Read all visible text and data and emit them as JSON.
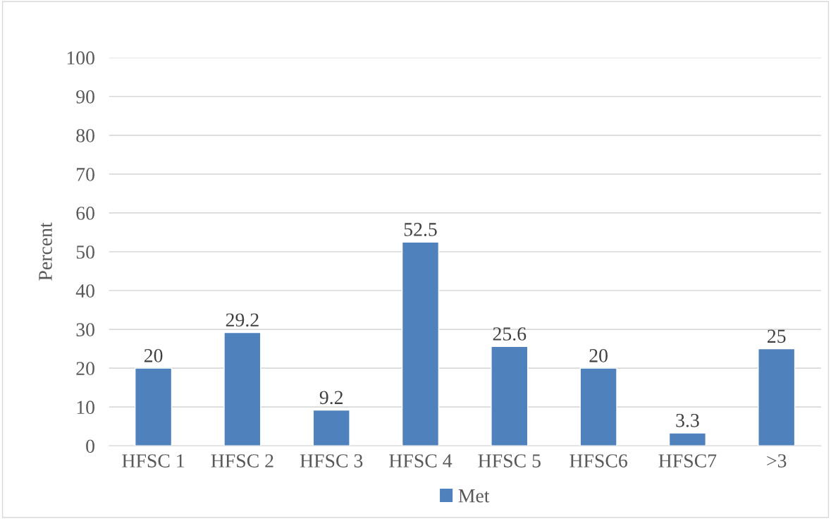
{
  "chart_data": {
    "type": "bar",
    "ylabel": "Percent",
    "categories": [
      "HFSC 1",
      "HFSC 2",
      "HFSC 3",
      "HFSC 4",
      "HFSC 5",
      "HFSC6",
      "HFSC7",
      ">3"
    ],
    "series": [
      {
        "name": "Met",
        "color": "#4f81bd",
        "values": [
          20,
          29.2,
          9.2,
          52.5,
          25.6,
          20,
          3.3,
          25
        ]
      }
    ],
    "ylim": [
      0,
      100
    ],
    "yticks": [
      0,
      10,
      20,
      30,
      40,
      50,
      60,
      70,
      80,
      90,
      100
    ],
    "grid": "y",
    "legend": "bottom",
    "data_labels": true
  }
}
